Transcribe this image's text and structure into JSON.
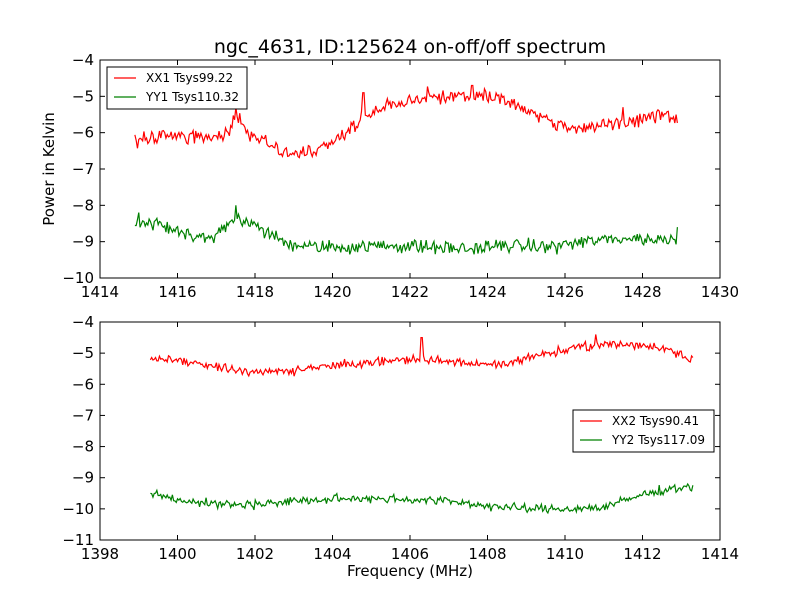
{
  "chart_data": [
    {
      "type": "line",
      "title": "ngc_4631, ID:125624 on-off/off spectrum",
      "xlabel": "",
      "ylabel": "Power in Kelvin",
      "xlim": [
        1414,
        1430
      ],
      "ylim": [
        -10,
        -4
      ],
      "xticks": [
        1414,
        1416,
        1418,
        1420,
        1422,
        1424,
        1426,
        1428,
        1430
      ],
      "yticks": [
        -10,
        -9,
        -8,
        -7,
        -6,
        -5,
        -4
      ],
      "grid": false,
      "legend_position": "upper-left",
      "series": [
        {
          "name": "XX1 Tsys99.22",
          "color": "#ff0000",
          "x_range": [
            1414.9,
            1428.9
          ],
          "noise": 0.14,
          "seed": 11,
          "x": [
            1414.9,
            1415.5,
            1416.0,
            1416.5,
            1417.0,
            1417.3,
            1417.5,
            1417.8,
            1418.2,
            1418.6,
            1419.0,
            1419.5,
            1420.0,
            1420.4,
            1420.8,
            1421.3,
            1421.8,
            1422.3,
            1423.0,
            1423.6,
            1424.2,
            1424.8,
            1425.3,
            1425.8,
            1426.3,
            1426.8,
            1427.3,
            1427.8,
            1428.4,
            1428.9
          ],
          "y": [
            -6.2,
            -6.1,
            -6.05,
            -6.1,
            -6.15,
            -5.95,
            -5.5,
            -6.0,
            -6.2,
            -6.5,
            -6.6,
            -6.55,
            -6.25,
            -5.95,
            -5.6,
            -5.3,
            -5.15,
            -5.0,
            -4.95,
            -4.95,
            -5.0,
            -5.25,
            -5.55,
            -5.8,
            -5.9,
            -5.85,
            -5.7,
            -5.6,
            -5.55,
            -5.6
          ],
          "spikes": [
            {
              "x": 1420.8,
              "y": -4.9
            },
            {
              "x": 1417.5,
              "y": -5.3
            },
            {
              "x": 1423.6,
              "y": -4.7
            },
            {
              "x": 1427.5,
              "y": -5.3
            }
          ]
        },
        {
          "name": "YY1 Tsys110.32",
          "color": "#008000",
          "x_range": [
            1414.9,
            1428.9
          ],
          "noise": 0.13,
          "seed": 23,
          "x": [
            1414.9,
            1415.5,
            1416.0,
            1416.5,
            1416.9,
            1417.2,
            1417.6,
            1418.0,
            1418.4,
            1418.8,
            1419.5,
            1420.5,
            1421.5,
            1422.5,
            1423.5,
            1424.5,
            1425.5,
            1426.5,
            1427.5,
            1428.5,
            1428.9
          ],
          "y": [
            -8.5,
            -8.5,
            -8.7,
            -8.85,
            -8.9,
            -8.6,
            -8.4,
            -8.55,
            -8.8,
            -9.05,
            -9.15,
            -9.15,
            -9.1,
            -9.15,
            -9.2,
            -9.1,
            -9.15,
            -9.0,
            -8.9,
            -8.95,
            -8.9
          ],
          "spikes": [
            {
              "x": 1417.5,
              "y": -8.0
            },
            {
              "x": 1428.9,
              "y": -8.6
            },
            {
              "x": 1415.0,
              "y": -8.2
            }
          ]
        }
      ]
    },
    {
      "type": "line",
      "title": "",
      "xlabel": "Frequency (MHz)",
      "ylabel": "",
      "xlim": [
        1398,
        1414
      ],
      "ylim": [
        -11,
        -4
      ],
      "xticks": [
        1398,
        1400,
        1402,
        1404,
        1406,
        1408,
        1410,
        1412,
        1414
      ],
      "yticks": [
        -11,
        -10,
        -9,
        -8,
        -7,
        -6,
        -5,
        -4
      ],
      "grid": false,
      "legend_position": "center-right",
      "series": [
        {
          "name": "XX2 Tsys90.41",
          "color": "#ff0000",
          "x_range": [
            1399.3,
            1413.3
          ],
          "noise": 0.1,
          "seed": 37,
          "x": [
            1399.3,
            1400.0,
            1401.0,
            1402.0,
            1403.0,
            1404.0,
            1405.0,
            1406.0,
            1407.0,
            1408.0,
            1408.5,
            1409.0,
            1409.5,
            1410.0,
            1410.8,
            1411.5,
            1412.0,
            1412.5,
            1413.0,
            1413.3
          ],
          "y": [
            -5.2,
            -5.25,
            -5.45,
            -5.6,
            -5.55,
            -5.4,
            -5.3,
            -5.2,
            -5.25,
            -5.4,
            -5.35,
            -5.15,
            -5.0,
            -4.9,
            -4.75,
            -4.7,
            -4.75,
            -4.85,
            -5.0,
            -5.2
          ],
          "spikes": [
            {
              "x": 1406.3,
              "y": -4.5
            },
            {
              "x": 1410.8,
              "y": -4.4
            }
          ]
        },
        {
          "name": "YY2 Tsys117.09",
          "color": "#008000",
          "x_range": [
            1399.3,
            1413.3
          ],
          "noise": 0.1,
          "seed": 53,
          "x": [
            1399.3,
            1400.0,
            1401.0,
            1402.0,
            1403.0,
            1404.0,
            1405.0,
            1406.0,
            1407.0,
            1408.0,
            1409.0,
            1410.0,
            1411.0,
            1411.5,
            1412.0,
            1412.5,
            1413.0,
            1413.3
          ],
          "y": [
            -9.5,
            -9.7,
            -9.85,
            -9.85,
            -9.75,
            -9.7,
            -9.65,
            -9.7,
            -9.75,
            -9.9,
            -10.0,
            -10.0,
            -9.95,
            -9.75,
            -9.55,
            -9.4,
            -9.3,
            -9.3
          ]
        }
      ]
    }
  ]
}
